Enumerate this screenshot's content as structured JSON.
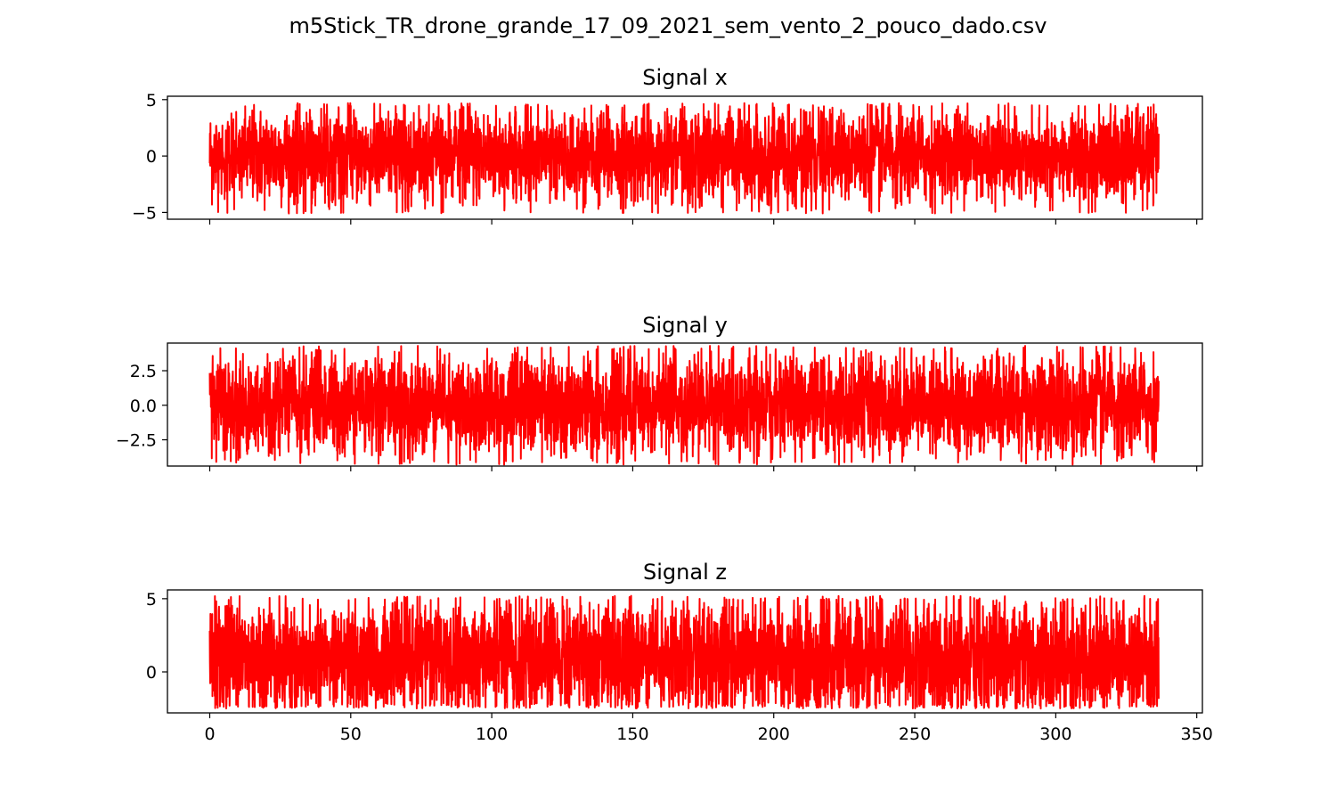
{
  "figure": {
    "suptitle": "m5Stick_TR_drone_grande_17_09_2021_sem_vento_2_pouco_dado.csv"
  },
  "chart_data": [
    {
      "type": "line",
      "title": "Signal x",
      "xlabel": "",
      "ylabel": "",
      "color": "#ff0000",
      "xlim": [
        -15,
        352
      ],
      "ylim": [
        -5.6,
        5.3
      ],
      "x_ticks": [
        0,
        50,
        100,
        150,
        200,
        250,
        300,
        350
      ],
      "x_tick_labels_visible": false,
      "y_ticks": [
        5,
        0,
        -5
      ],
      "y_tick_labels": [
        "5",
        "0",
        "−5"
      ],
      "grid": false,
      "legend": "none",
      "series": [
        {
          "x_range": [
            0,
            336.5
          ],
          "center": 0.0,
          "typical_band": [
            -2.3,
            2.3
          ],
          "max": 4.7,
          "min": -5.1
        }
      ]
    },
    {
      "type": "line",
      "title": "Signal y",
      "xlabel": "",
      "ylabel": "",
      "color": "#ff0000",
      "xlim": [
        -15,
        352
      ],
      "ylim": [
        -4.4,
        4.5
      ],
      "x_ticks": [
        0,
        50,
        100,
        150,
        200,
        250,
        300,
        350
      ],
      "x_tick_labels_visible": false,
      "y_ticks": [
        2.5,
        0.0,
        -2.5
      ],
      "y_tick_labels": [
        "2.5",
        "0.0",
        "−2.5"
      ],
      "grid": false,
      "legend": "none",
      "series": [
        {
          "x_range": [
            0,
            336.5
          ],
          "center": 0.0,
          "typical_band": [
            -2.0,
            2.0
          ],
          "max": 4.3,
          "min": -4.3
        }
      ]
    },
    {
      "type": "line",
      "title": "Signal z",
      "xlabel": "",
      "ylabel": "",
      "color": "#ff0000",
      "xlim": [
        -15,
        352
      ],
      "ylim": [
        -2.8,
        5.6
      ],
      "x_ticks": [
        0,
        50,
        100,
        150,
        200,
        250,
        300,
        350
      ],
      "x_tick_labels": [
        "0",
        "50",
        "100",
        "150",
        "200",
        "250",
        "300",
        "350"
      ],
      "x_tick_labels_visible": true,
      "y_ticks": [
        5,
        0
      ],
      "y_tick_labels": [
        "5",
        "0"
      ],
      "grid": false,
      "legend": "none",
      "series": [
        {
          "x_range": [
            0,
            336.5
          ],
          "center": 0.9,
          "typical_band": [
            -1.3,
            3.2
          ],
          "max": 5.2,
          "min": -2.5
        }
      ]
    }
  ]
}
